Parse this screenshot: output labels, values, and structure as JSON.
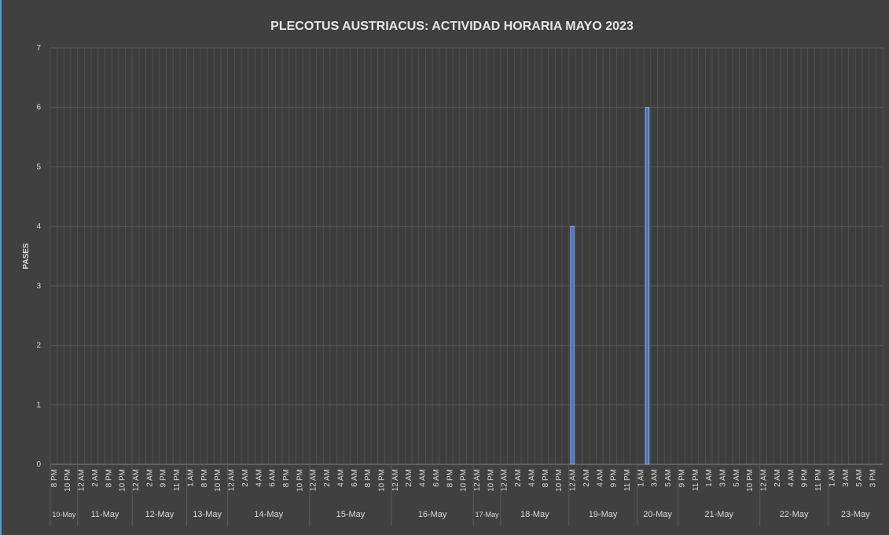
{
  "chart_data": {
    "type": "bar",
    "title": "PLECOTUS AUSTRIACUS: ACTIVIDAD HORARIA MAYO 2023",
    "y_label": "PASES",
    "color": "#4472c4",
    "grid": true,
    "ylim": [
      0,
      7
    ],
    "yticks": [
      0,
      1,
      2,
      3,
      4,
      5,
      6,
      7
    ],
    "categories": [
      "8 PM",
      null,
      "10 PM",
      null,
      "12 AM",
      null,
      "2 AM",
      null,
      "8 PM",
      null,
      "10 PM",
      null,
      "12 AM",
      null,
      "2 AM",
      null,
      "9 PM",
      null,
      "11 PM",
      null,
      "1 AM",
      null,
      "8 PM",
      null,
      "10 PM",
      null,
      "12 AM",
      null,
      "2 AM",
      null,
      "4 AM",
      null,
      "6 AM",
      null,
      "8 PM",
      null,
      "10 PM",
      null,
      "12 AM",
      null,
      "2 AM",
      null,
      "4 AM",
      null,
      "6 AM",
      null,
      "8 PM",
      null,
      "10 PM",
      null,
      "12 AM",
      null,
      "2 AM",
      null,
      "4 AM",
      null,
      "6 AM",
      null,
      "8 PM",
      null,
      "10 PM",
      null,
      "12 AM",
      null,
      "10 PM",
      null,
      "12 AM",
      null,
      "2 AM",
      null,
      "4 AM",
      null,
      "8 PM",
      null,
      "10 PM",
      null,
      "12 AM",
      null,
      "2 AM",
      null,
      "4 AM",
      null,
      "9 PM",
      null,
      "11 PM",
      null,
      "1 AM",
      null,
      "3 AM",
      null,
      "5 AM",
      null,
      "9 PM",
      null,
      "11 PM",
      null,
      "1 AM",
      null,
      "3 AM",
      null,
      "5 AM",
      null,
      "10 PM",
      null,
      "12 AM",
      null,
      "2 AM",
      null,
      "4 AM",
      null,
      "9 PM",
      null,
      "11 PM",
      null,
      "1 AM",
      null,
      "3 AM",
      null,
      "5 AM",
      null,
      "3 PM",
      null
    ],
    "values": [
      0,
      0,
      0,
      0,
      0,
      0,
      0,
      0,
      0,
      0,
      0,
      0,
      0,
      0,
      0,
      0,
      0,
      0,
      0,
      0,
      0,
      0,
      0,
      0,
      0,
      0,
      0,
      0,
      0,
      0,
      0,
      0,
      0,
      0,
      0,
      0,
      0,
      0,
      0,
      0,
      0,
      0,
      0,
      0,
      0,
      0,
      0,
      0,
      0,
      0,
      0,
      0,
      0,
      0,
      0,
      0,
      0,
      0,
      0,
      0,
      0,
      0,
      0,
      0,
      0,
      0,
      0,
      0,
      0,
      0,
      0,
      0,
      0,
      0,
      0,
      0,
      4,
      0,
      0,
      0,
      0,
      0,
      0,
      0,
      0,
      0,
      0,
      6,
      0,
      0,
      0,
      0,
      0,
      0,
      0,
      0,
      0,
      0,
      0,
      0,
      0,
      0,
      0,
      0,
      0,
      0,
      0,
      0,
      0,
      0,
      0,
      0,
      0,
      0,
      0,
      0,
      0,
      0,
      0,
      0,
      0,
      0
    ],
    "day_groups": [
      {
        "label": "10-May",
        "count": 4
      },
      {
        "label": "11-May",
        "count": 8
      },
      {
        "label": "12-May",
        "count": 8
      },
      {
        "label": "13-May",
        "count": 6
      },
      {
        "label": "14-May",
        "count": 12
      },
      {
        "label": "15-May",
        "count": 12
      },
      {
        "label": "16-May",
        "count": 12
      },
      {
        "label": "17-May",
        "count": 4
      },
      {
        "label": "18-May",
        "count": 10
      },
      {
        "label": "19-May",
        "count": 10
      },
      {
        "label": "20-May",
        "count": 6
      },
      {
        "label": "21-May",
        "count": 12
      },
      {
        "label": "22-May",
        "count": 10
      },
      {
        "label": "23-May",
        "count": 8
      }
    ]
  }
}
